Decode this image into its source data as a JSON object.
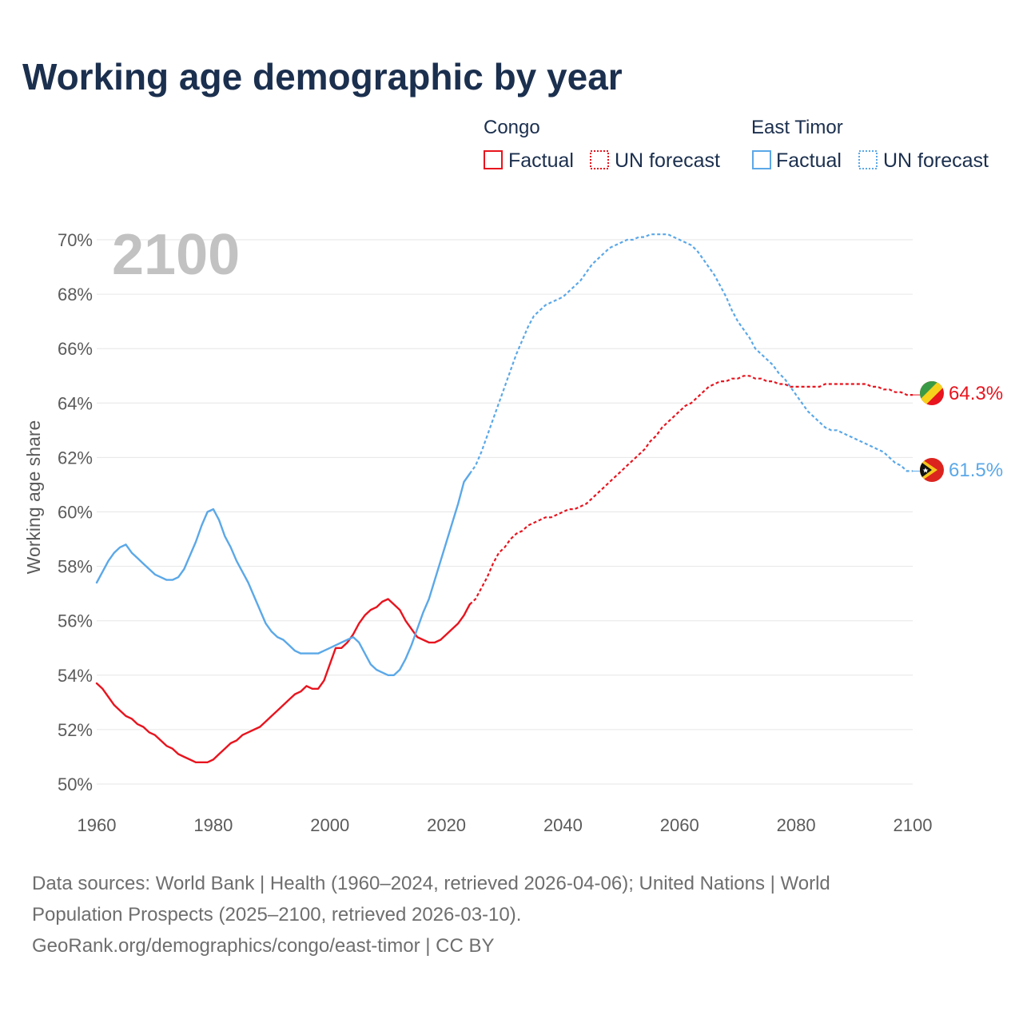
{
  "chart_data": {
    "type": "line",
    "title": "Working age demographic by year",
    "ylabel": "Working age share",
    "xlabel": "",
    "year_display": "2100",
    "xlim": [
      1960,
      2100
    ],
    "ylim": [
      50,
      70
    ],
    "x_ticks": [
      1960,
      1980,
      2000,
      2020,
      2040,
      2060,
      2080,
      2100
    ],
    "x_tick_labels": [
      "1960",
      "1980",
      "2000",
      "2020",
      "2040",
      "2060",
      "2080",
      "2100"
    ],
    "y_ticks": [
      50,
      52,
      54,
      56,
      58,
      60,
      62,
      64,
      66,
      68,
      70
    ],
    "y_tick_labels": [
      "50%",
      "52%",
      "54%",
      "56%",
      "58%",
      "60%",
      "62%",
      "64%",
      "66%",
      "68%",
      "70%"
    ],
    "legend": {
      "groups": [
        {
          "country": "Congo",
          "factual": "Factual",
          "forecast": "UN forecast"
        },
        {
          "country": "East Timor",
          "factual": "Factual",
          "forecast": "UN forecast"
        }
      ]
    },
    "series": [
      {
        "name": "Congo",
        "color": "#e8141e",
        "end_label": "64.3%",
        "factual": [
          [
            1960,
            53.7
          ],
          [
            1961,
            53.5
          ],
          [
            1962,
            53.2
          ],
          [
            1963,
            52.9
          ],
          [
            1964,
            52.7
          ],
          [
            1965,
            52.5
          ],
          [
            1966,
            52.4
          ],
          [
            1967,
            52.2
          ],
          [
            1968,
            52.1
          ],
          [
            1969,
            51.9
          ],
          [
            1970,
            51.8
          ],
          [
            1971,
            51.6
          ],
          [
            1972,
            51.4
          ],
          [
            1973,
            51.3
          ],
          [
            1974,
            51.1
          ],
          [
            1975,
            51.0
          ],
          [
            1976,
            50.9
          ],
          [
            1977,
            50.8
          ],
          [
            1978,
            50.8
          ],
          [
            1979,
            50.8
          ],
          [
            1980,
            50.9
          ],
          [
            1981,
            51.1
          ],
          [
            1982,
            51.3
          ],
          [
            1983,
            51.5
          ],
          [
            1984,
            51.6
          ],
          [
            1985,
            51.8
          ],
          [
            1986,
            51.9
          ],
          [
            1987,
            52.0
          ],
          [
            1988,
            52.1
          ],
          [
            1989,
            52.3
          ],
          [
            1990,
            52.5
          ],
          [
            1991,
            52.7
          ],
          [
            1992,
            52.9
          ],
          [
            1993,
            53.1
          ],
          [
            1994,
            53.3
          ],
          [
            1995,
            53.4
          ],
          [
            1996,
            53.6
          ],
          [
            1997,
            53.5
          ],
          [
            1998,
            53.5
          ],
          [
            1999,
            53.8
          ],
          [
            2000,
            54.4
          ],
          [
            2001,
            55.0
          ],
          [
            2002,
            55.0
          ],
          [
            2003,
            55.2
          ],
          [
            2004,
            55.5
          ],
          [
            2005,
            55.9
          ],
          [
            2006,
            56.2
          ],
          [
            2007,
            56.4
          ],
          [
            2008,
            56.5
          ],
          [
            2009,
            56.7
          ],
          [
            2010,
            56.8
          ],
          [
            2011,
            56.6
          ],
          [
            2012,
            56.4
          ],
          [
            2013,
            56.0
          ],
          [
            2014,
            55.7
          ],
          [
            2015,
            55.4
          ],
          [
            2016,
            55.3
          ],
          [
            2017,
            55.2
          ],
          [
            2018,
            55.2
          ],
          [
            2019,
            55.3
          ],
          [
            2020,
            55.5
          ],
          [
            2021,
            55.7
          ],
          [
            2022,
            55.9
          ],
          [
            2023,
            56.2
          ],
          [
            2024,
            56.6
          ]
        ],
        "forecast": [
          [
            2024,
            56.6
          ],
          [
            2025,
            56.8
          ],
          [
            2026,
            57.2
          ],
          [
            2027,
            57.6
          ],
          [
            2028,
            58.1
          ],
          [
            2029,
            58.5
          ],
          [
            2030,
            58.7
          ],
          [
            2031,
            59.0
          ],
          [
            2032,
            59.2
          ],
          [
            2033,
            59.3
          ],
          [
            2034,
            59.5
          ],
          [
            2035,
            59.6
          ],
          [
            2036,
            59.7
          ],
          [
            2037,
            59.8
          ],
          [
            2038,
            59.8
          ],
          [
            2039,
            59.9
          ],
          [
            2040,
            60.0
          ],
          [
            2041,
            60.1
          ],
          [
            2042,
            60.1
          ],
          [
            2043,
            60.2
          ],
          [
            2044,
            60.3
          ],
          [
            2045,
            60.5
          ],
          [
            2046,
            60.7
          ],
          [
            2047,
            60.9
          ],
          [
            2048,
            61.1
          ],
          [
            2049,
            61.3
          ],
          [
            2050,
            61.5
          ],
          [
            2051,
            61.7
          ],
          [
            2052,
            61.9
          ],
          [
            2053,
            62.1
          ],
          [
            2054,
            62.3
          ],
          [
            2055,
            62.6
          ],
          [
            2056,
            62.8
          ],
          [
            2057,
            63.1
          ],
          [
            2058,
            63.3
          ],
          [
            2059,
            63.5
          ],
          [
            2060,
            63.7
          ],
          [
            2061,
            63.9
          ],
          [
            2062,
            64.0
          ],
          [
            2063,
            64.2
          ],
          [
            2064,
            64.4
          ],
          [
            2065,
            64.6
          ],
          [
            2066,
            64.7
          ],
          [
            2067,
            64.8
          ],
          [
            2068,
            64.8
          ],
          [
            2069,
            64.9
          ],
          [
            2070,
            64.9
          ],
          [
            2071,
            65.0
          ],
          [
            2072,
            65.0
          ],
          [
            2073,
            64.9
          ],
          [
            2074,
            64.9
          ],
          [
            2075,
            64.8
          ],
          [
            2076,
            64.8
          ],
          [
            2077,
            64.7
          ],
          [
            2078,
            64.7
          ],
          [
            2079,
            64.6
          ],
          [
            2080,
            64.6
          ],
          [
            2081,
            64.6
          ],
          [
            2082,
            64.6
          ],
          [
            2083,
            64.6
          ],
          [
            2084,
            64.6
          ],
          [
            2085,
            64.7
          ],
          [
            2086,
            64.7
          ],
          [
            2087,
            64.7
          ],
          [
            2088,
            64.7
          ],
          [
            2089,
            64.7
          ],
          [
            2090,
            64.7
          ],
          [
            2091,
            64.7
          ],
          [
            2092,
            64.7
          ],
          [
            2093,
            64.6
          ],
          [
            2094,
            64.6
          ],
          [
            2095,
            64.5
          ],
          [
            2096,
            64.5
          ],
          [
            2097,
            64.4
          ],
          [
            2098,
            64.4
          ],
          [
            2099,
            64.3
          ],
          [
            2100,
            64.3
          ]
        ]
      },
      {
        "name": "East Timor",
        "color": "#5ba8e8",
        "end_label": "61.5%",
        "factual": [
          [
            1960,
            57.4
          ],
          [
            1961,
            57.8
          ],
          [
            1962,
            58.2
          ],
          [
            1963,
            58.5
          ],
          [
            1964,
            58.7
          ],
          [
            1965,
            58.8
          ],
          [
            1966,
            58.5
          ],
          [
            1967,
            58.3
          ],
          [
            1968,
            58.1
          ],
          [
            1969,
            57.9
          ],
          [
            1970,
            57.7
          ],
          [
            1971,
            57.6
          ],
          [
            1972,
            57.5
          ],
          [
            1973,
            57.5
          ],
          [
            1974,
            57.6
          ],
          [
            1975,
            57.9
          ],
          [
            1976,
            58.4
          ],
          [
            1977,
            58.9
          ],
          [
            1978,
            59.5
          ],
          [
            1979,
            60.0
          ],
          [
            1980,
            60.1
          ],
          [
            1981,
            59.7
          ],
          [
            1982,
            59.1
          ],
          [
            1983,
            58.7
          ],
          [
            1984,
            58.2
          ],
          [
            1985,
            57.8
          ],
          [
            1986,
            57.4
          ],
          [
            1987,
            56.9
          ],
          [
            1988,
            56.4
          ],
          [
            1989,
            55.9
          ],
          [
            1990,
            55.6
          ],
          [
            1991,
            55.4
          ],
          [
            1992,
            55.3
          ],
          [
            1993,
            55.1
          ],
          [
            1994,
            54.9
          ],
          [
            1995,
            54.8
          ],
          [
            1996,
            54.8
          ],
          [
            1997,
            54.8
          ],
          [
            1998,
            54.8
          ],
          [
            1999,
            54.9
          ],
          [
            2000,
            55.0
          ],
          [
            2001,
            55.1
          ],
          [
            2002,
            55.2
          ],
          [
            2003,
            55.3
          ],
          [
            2004,
            55.4
          ],
          [
            2005,
            55.2
          ],
          [
            2006,
            54.8
          ],
          [
            2007,
            54.4
          ],
          [
            2008,
            54.2
          ],
          [
            2009,
            54.1
          ],
          [
            2010,
            54.0
          ],
          [
            2011,
            54.0
          ],
          [
            2012,
            54.2
          ],
          [
            2013,
            54.6
          ],
          [
            2014,
            55.1
          ],
          [
            2015,
            55.7
          ],
          [
            2016,
            56.3
          ],
          [
            2017,
            56.8
          ],
          [
            2018,
            57.5
          ],
          [
            2019,
            58.2
          ],
          [
            2020,
            58.9
          ],
          [
            2021,
            59.6
          ],
          [
            2022,
            60.3
          ],
          [
            2023,
            61.1
          ],
          [
            2024,
            61.4
          ]
        ],
        "forecast": [
          [
            2024,
            61.4
          ],
          [
            2025,
            61.7
          ],
          [
            2026,
            62.2
          ],
          [
            2027,
            62.8
          ],
          [
            2028,
            63.4
          ],
          [
            2029,
            64.0
          ],
          [
            2030,
            64.6
          ],
          [
            2031,
            65.2
          ],
          [
            2032,
            65.8
          ],
          [
            2033,
            66.3
          ],
          [
            2034,
            66.8
          ],
          [
            2035,
            67.2
          ],
          [
            2036,
            67.4
          ],
          [
            2037,
            67.6
          ],
          [
            2038,
            67.7
          ],
          [
            2039,
            67.8
          ],
          [
            2040,
            67.9
          ],
          [
            2041,
            68.1
          ],
          [
            2042,
            68.3
          ],
          [
            2043,
            68.5
          ],
          [
            2044,
            68.8
          ],
          [
            2045,
            69.1
          ],
          [
            2046,
            69.3
          ],
          [
            2047,
            69.5
          ],
          [
            2048,
            69.7
          ],
          [
            2049,
            69.8
          ],
          [
            2050,
            69.9
          ],
          [
            2051,
            70.0
          ],
          [
            2052,
            70.0
          ],
          [
            2053,
            70.1
          ],
          [
            2054,
            70.1
          ],
          [
            2055,
            70.2
          ],
          [
            2056,
            70.2
          ],
          [
            2057,
            70.2
          ],
          [
            2058,
            70.2
          ],
          [
            2059,
            70.1
          ],
          [
            2060,
            70.0
          ],
          [
            2061,
            69.9
          ],
          [
            2062,
            69.8
          ],
          [
            2063,
            69.6
          ],
          [
            2064,
            69.3
          ],
          [
            2065,
            69.0
          ],
          [
            2066,
            68.7
          ],
          [
            2067,
            68.3
          ],
          [
            2068,
            67.9
          ],
          [
            2069,
            67.4
          ],
          [
            2070,
            67.0
          ],
          [
            2071,
            66.7
          ],
          [
            2072,
            66.4
          ],
          [
            2073,
            66.0
          ],
          [
            2074,
            65.8
          ],
          [
            2075,
            65.6
          ],
          [
            2076,
            65.4
          ],
          [
            2077,
            65.1
          ],
          [
            2078,
            64.9
          ],
          [
            2079,
            64.6
          ],
          [
            2080,
            64.3
          ],
          [
            2081,
            64.0
          ],
          [
            2082,
            63.7
          ],
          [
            2083,
            63.5
          ],
          [
            2084,
            63.3
          ],
          [
            2085,
            63.1
          ],
          [
            2086,
            63.0
          ],
          [
            2087,
            63.0
          ],
          [
            2088,
            62.9
          ],
          [
            2089,
            62.8
          ],
          [
            2090,
            62.7
          ],
          [
            2091,
            62.6
          ],
          [
            2092,
            62.5
          ],
          [
            2093,
            62.4
          ],
          [
            2094,
            62.3
          ],
          [
            2095,
            62.2
          ],
          [
            2096,
            62.0
          ],
          [
            2097,
            61.8
          ],
          [
            2098,
            61.7
          ],
          [
            2099,
            61.5
          ],
          [
            2100,
            61.5
          ]
        ]
      }
    ]
  },
  "colors": {
    "title": "#1b2f4e",
    "grid": "#e6e6e6",
    "congo": "#e8141e",
    "east_timor": "#5ba8e8",
    "watermark": "#c2c2c2"
  },
  "footer": {
    "line1": "Data sources: World Bank | Health (1960–2024, retrieved 2026-04-06); United Nations | World",
    "line2": "Population Prospects (2025–2100, retrieved 2026-03-10).",
    "line3": "GeoRank.org/demographics/congo/east-timor | CC BY"
  }
}
